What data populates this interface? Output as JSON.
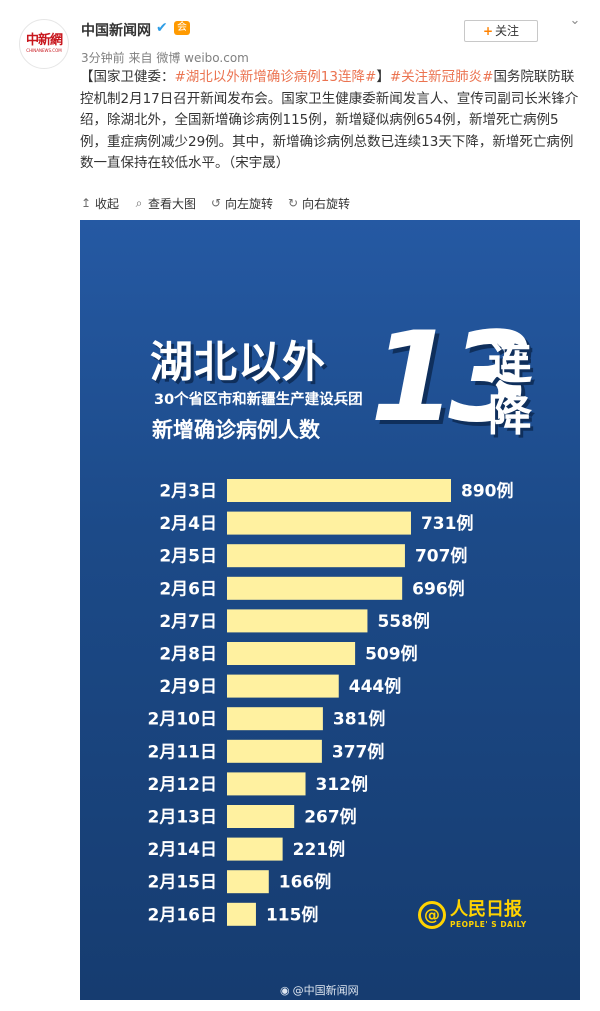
{
  "account": {
    "name": "中国新闻网",
    "logo_text": "中新網",
    "logo_sub": "CHINANEWS.COM",
    "member_badge": "会"
  },
  "meta": {
    "time": "3分钟前",
    "source_prefix": "来自",
    "source": "微博 weibo.com"
  },
  "follow_button": {
    "plus": "+",
    "label": "关注"
  },
  "post": {
    "prefix": "【国家卫健委：",
    "tag1": "#湖北以外新增确诊病例13连降#",
    "mid": "】",
    "tag2": "#关注新冠肺炎#",
    "body": "国务院联防联控机制2月17日召开新闻发布会。国家卫生健康委新闻发言人、宣传司副司长米锋介绍，除湖北外，全国新增确诊病例115例，新增疑似病例654例，新增死亡病例5例，重症病例减少29例。其中，新增确诊病例总数已连续13天下降，新增死亡病例数一直保持在较低水平。（宋宇晟）"
  },
  "actions": [
    {
      "name": "collapse",
      "icon": "up-arrow-icon",
      "label": "收起"
    },
    {
      "name": "view-original",
      "icon": "magnifier-icon",
      "label": "查看大图"
    },
    {
      "name": "rotate-left",
      "icon": "rotate-left-icon",
      "label": "向左旋转"
    },
    {
      "name": "rotate-right",
      "icon": "rotate-right-icon",
      "label": "向右旋转"
    }
  ],
  "graphic": {
    "title": "湖北以外",
    "number": "13",
    "lian": "连降",
    "subtitle1": "30个省区市和新疆生产建设兵团",
    "subtitle2": "新增确诊病例人数",
    "brand_cn": "人民日报",
    "brand_en": "PEOPLE' S DAILY",
    "watermark": "@中国新闻网",
    "colors": {
      "bar": "#fff1a0",
      "background": "#1f4e8f",
      "text": "#ffffff",
      "brand": "#ffd300"
    }
  },
  "chart_data": {
    "type": "bar",
    "orientation": "horizontal",
    "categories": [
      "2月3日",
      "2月4日",
      "2月5日",
      "2月6日",
      "2月7日",
      "2月8日",
      "2月9日",
      "2月10日",
      "2月11日",
      "2月12日",
      "2月13日",
      "2月14日",
      "2月15日",
      "2月16日"
    ],
    "values": [
      890,
      731,
      707,
      696,
      558,
      509,
      444,
      381,
      377,
      312,
      267,
      221,
      166,
      115
    ],
    "value_labels": [
      "890例",
      "731例",
      "707例",
      "696例",
      "558例",
      "509例",
      "444例",
      "381例",
      "377例",
      "312例",
      "267例",
      "221例",
      "166例",
      "115例"
    ],
    "title": "湖北以外13连降",
    "subtitle": "30个省区市和新疆生产建设兵团新增确诊病例人数",
    "xlabel": "",
    "ylabel": "",
    "grid": false
  }
}
